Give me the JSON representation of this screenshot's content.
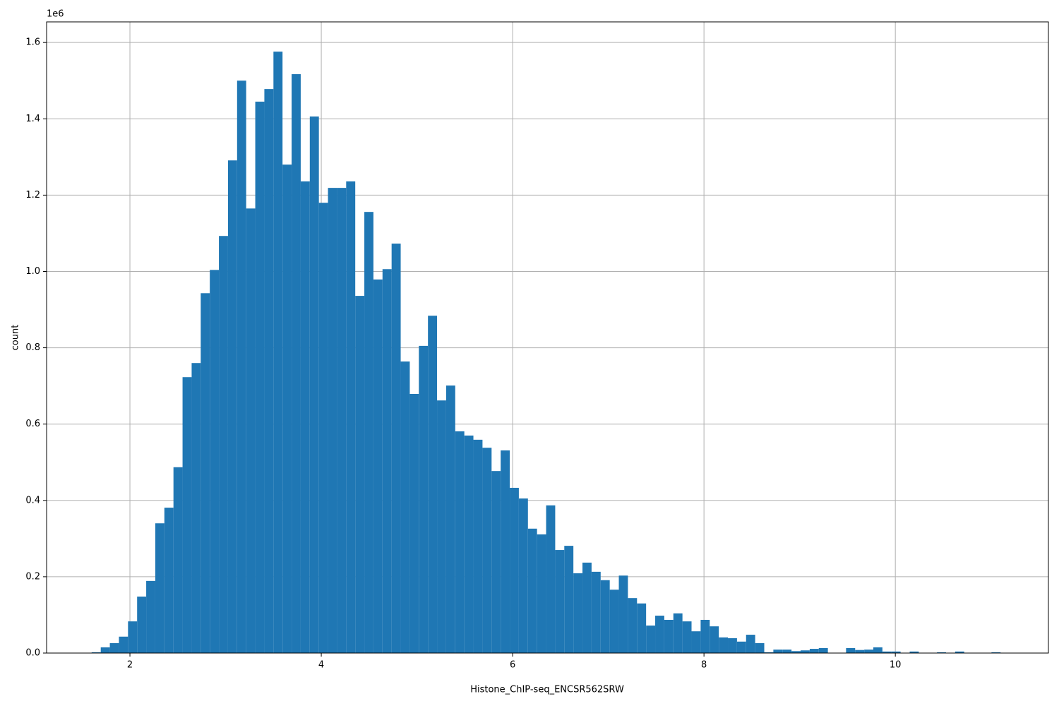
{
  "chart_data": {
    "type": "histogram",
    "xlabel": "Histone_ChIP-seq_ENCSR562SRW",
    "ylabel": "count",
    "y_offset_label": "1e6",
    "color": "#1f77b4",
    "grid": true,
    "xlim": [
      1.129,
      11.6
    ],
    "ylim": [
      0,
      1654000
    ],
    "xticks": [
      2,
      4,
      6,
      8,
      10
    ],
    "yticks": [
      {
        "value": 0,
        "label": "0.0"
      },
      {
        "value": 200000,
        "label": "0.2"
      },
      {
        "value": 400000,
        "label": "0.4"
      },
      {
        "value": 600000,
        "label": "0.6"
      },
      {
        "value": 800000,
        "label": "0.8"
      },
      {
        "value": 1000000,
        "label": "1.0"
      },
      {
        "value": 1200000,
        "label": "1.2"
      },
      {
        "value": 1400000,
        "label": "1.4"
      },
      {
        "value": 1600000,
        "label": "1.6"
      }
    ],
    "bins": [
      1.6,
      1.695,
      1.79,
      1.885,
      1.98,
      2.075,
      2.17,
      2.265,
      2.36,
      2.455,
      2.55,
      2.645,
      2.74,
      2.835,
      2.93,
      3.025,
      3.12,
      3.215,
      3.31,
      3.405,
      3.5,
      3.595,
      3.69,
      3.785,
      3.88,
      3.975,
      4.07,
      4.165,
      4.26,
      4.355,
      4.45,
      4.545,
      4.64,
      4.735,
      4.83,
      4.925,
      5.02,
      5.115,
      5.21,
      5.305,
      5.4,
      5.495,
      5.59,
      5.685,
      5.78,
      5.875,
      5.97,
      6.065,
      6.16,
      6.255,
      6.35,
      6.445,
      6.54,
      6.635,
      6.73,
      6.825,
      6.92,
      7.015,
      7.11,
      7.205,
      7.3,
      7.395,
      7.49,
      7.585,
      7.68,
      7.775,
      7.87,
      7.965,
      8.06,
      8.155,
      8.25,
      8.345,
      8.44,
      8.535,
      8.63,
      8.725,
      8.82,
      8.915,
      9.01,
      9.105,
      9.2,
      9.295,
      9.39,
      9.485,
      9.58,
      9.675,
      9.77,
      9.865,
      9.96,
      10.055,
      10.15,
      10.245,
      10.34,
      10.435,
      10.53,
      10.625,
      10.72,
      10.815,
      10.91,
      11.005,
      11.1
    ],
    "values": [
      2000,
      15000,
      26000,
      43000,
      83000,
      148000,
      189000,
      340000,
      381000,
      487000,
      723000,
      760000,
      943000,
      1004000,
      1093000,
      1291000,
      1500000,
      1165000,
      1445000,
      1478000,
      1576000,
      1280000,
      1517000,
      1236000,
      1406000,
      1180000,
      1219000,
      1219000,
      1236000,
      936000,
      1156000,
      979000,
      1006000,
      1073000,
      764000,
      679000,
      805000,
      884000,
      662000,
      701000,
      581000,
      570000,
      559000,
      538000,
      477000,
      531000,
      433000,
      405000,
      326000,
      311000,
      387000,
      270000,
      281000,
      209000,
      237000,
      213000,
      191000,
      166000,
      203000,
      144000,
      130000,
      72000,
      98000,
      87000,
      104000,
      83000,
      57000,
      87000,
      70000,
      41000,
      39000,
      30000,
      48000,
      26000,
      2000,
      9000,
      9000,
      5000,
      7000,
      11000,
      13000,
      0,
      0,
      13000,
      8000,
      9000,
      15000,
      4000,
      4000,
      0,
      4000,
      0,
      0,
      2000,
      0,
      4000,
      0,
      0,
      0,
      2000
    ]
  }
}
